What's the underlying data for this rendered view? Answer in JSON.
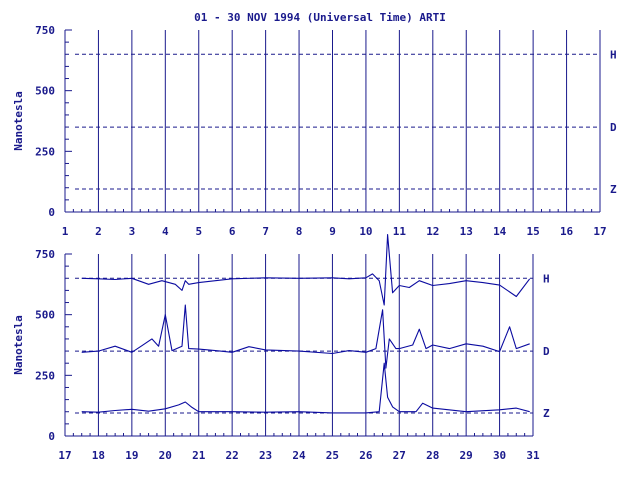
{
  "title": "01 - 30 NOV 1994 (Universal Time) ARTI",
  "colors": {
    "ink": "#1a1a8c",
    "trace": "#0b0ba0",
    "background": "#ffffff"
  },
  "chart_data": [
    {
      "type": "line",
      "ylabel": "Nanotesla",
      "ylim": [
        0,
        750
      ],
      "yticks": [
        "0",
        "250",
        "500",
        "750"
      ],
      "xlim": [
        1,
        15
      ],
      "xticks": [
        "1",
        "2",
        "3",
        "4",
        "5",
        "6",
        "7",
        "8",
        "9",
        "10",
        "11",
        "12",
        "13",
        "14",
        "15",
        "16",
        "17"
      ],
      "grid": true,
      "baselines": [
        {
          "name": "H",
          "value": 650
        },
        {
          "name": "D",
          "value": 350
        },
        {
          "name": "Z",
          "value": 95
        }
      ],
      "series": []
    },
    {
      "type": "line",
      "ylabel": "Nanotesla",
      "ylim": [
        0,
        750
      ],
      "yticks": [
        "0",
        "250",
        "500",
        "750"
      ],
      "xlim": [
        17,
        31
      ],
      "xticks": [
        "17",
        "18",
        "19",
        "20",
        "21",
        "22",
        "23",
        "24",
        "25",
        "26",
        "27",
        "28",
        "29",
        "30",
        "31"
      ],
      "grid": true,
      "baselines": [
        {
          "name": "H",
          "value": 650
        },
        {
          "name": "D",
          "value": 350
        },
        {
          "name": "Z",
          "value": 95
        }
      ],
      "series": [
        {
          "name": "H",
          "x": [
            17.5,
            18.0,
            18.5,
            19.0,
            19.5,
            19.9,
            20.3,
            20.5,
            20.6,
            20.7,
            21.0,
            21.5,
            22.0,
            23.0,
            24.0,
            25.0,
            25.5,
            26.0,
            26.2,
            26.4,
            26.55,
            26.65,
            26.8,
            27.0,
            27.3,
            27.6,
            28.0,
            28.5,
            29.0,
            29.5,
            30.0,
            30.5,
            30.9
          ],
          "y": [
            650,
            648,
            645,
            650,
            625,
            640,
            625,
            600,
            640,
            625,
            632,
            640,
            648,
            652,
            650,
            652,
            648,
            652,
            668,
            640,
            540,
            830,
            590,
            620,
            612,
            640,
            620,
            628,
            640,
            632,
            622,
            575,
            648
          ]
        },
        {
          "name": "D",
          "x": [
            17.5,
            18.0,
            18.5,
            19.0,
            19.3,
            19.6,
            19.8,
            20.0,
            20.2,
            20.5,
            20.6,
            20.7,
            21.0,
            21.5,
            22.0,
            22.5,
            23.0,
            24.0,
            25.0,
            25.5,
            26.0,
            26.3,
            26.5,
            26.6,
            26.7,
            26.9,
            27.0,
            27.4,
            27.6,
            27.8,
            28.0,
            28.5,
            29.0,
            29.5,
            30.0,
            30.3,
            30.5,
            30.9
          ],
          "y": [
            345,
            350,
            370,
            345,
            372,
            400,
            370,
            500,
            352,
            370,
            540,
            360,
            358,
            352,
            345,
            368,
            355,
            350,
            340,
            352,
            345,
            360,
            520,
            280,
            400,
            360,
            360,
            375,
            440,
            360,
            375,
            360,
            380,
            370,
            348,
            450,
            360,
            380
          ]
        },
        {
          "name": "Z",
          "x": [
            17.5,
            18.0,
            18.5,
            19.0,
            19.5,
            20.0,
            20.4,
            20.6,
            20.8,
            21.0,
            22.0,
            23.0,
            24.0,
            25.0,
            26.0,
            26.4,
            26.55,
            26.65,
            26.8,
            27.0,
            27.5,
            27.7,
            28.0,
            29.0,
            30.0,
            30.5,
            30.9
          ],
          "y": [
            100,
            98,
            105,
            110,
            102,
            112,
            128,
            140,
            118,
            100,
            100,
            98,
            100,
            95,
            95,
            100,
            300,
            160,
            120,
            100,
            100,
            135,
            115,
            100,
            108,
            115,
            100
          ]
        }
      ]
    }
  ]
}
